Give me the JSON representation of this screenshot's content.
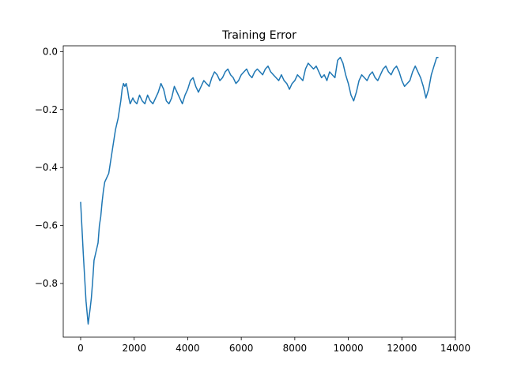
{
  "chart_data": {
    "type": "line",
    "title": "Training Error",
    "xlabel": "",
    "ylabel": "",
    "xlim": [
      -650,
      14000
    ],
    "ylim": [
      -0.985,
      0.02
    ],
    "x_ticks": [
      0,
      2000,
      4000,
      6000,
      8000,
      10000,
      12000,
      14000
    ],
    "x_tick_labels": [
      "0",
      "2000",
      "4000",
      "6000",
      "8000",
      "10000",
      "12000",
      "14000"
    ],
    "y_ticks": [
      0.0,
      -0.2,
      -0.4,
      -0.6,
      -0.8
    ],
    "y_tick_labels": [
      "0.0",
      "−0.2",
      "−0.4",
      "−0.6",
      "−0.8"
    ],
    "grid": false,
    "colors": {
      "line": "#1f77b4"
    },
    "series": [
      {
        "x": [
          0,
          100,
          200,
          280,
          350,
          400,
          450,
          500,
          550,
          600,
          650,
          700,
          750,
          800,
          850,
          900,
          950,
          1000,
          1050,
          1100,
          1150,
          1200,
          1250,
          1300,
          1350,
          1400,
          1450,
          1500,
          1550,
          1600,
          1650,
          1700,
          1750,
          1800,
          1850,
          1900,
          1950,
          2000,
          2100,
          2200,
          2300,
          2400,
          2500,
          2600,
          2700,
          2800,
          2900,
          3000,
          3100,
          3200,
          3300,
          3400,
          3500,
          3600,
          3700,
          3800,
          3900,
          4000,
          4100,
          4200,
          4300,
          4400,
          4500,
          4600,
          4700,
          4800,
          4900,
          5000,
          5100,
          5200,
          5300,
          5400,
          5500,
          5600,
          5700,
          5800,
          5900,
          6000,
          6100,
          6200,
          6300,
          6400,
          6500,
          6600,
          6700,
          6800,
          6900,
          7000,
          7100,
          7200,
          7300,
          7400,
          7500,
          7600,
          7700,
          7800,
          7900,
          8000,
          8100,
          8200,
          8300,
          8400,
          8500,
          8600,
          8700,
          8800,
          8900,
          9000,
          9100,
          9200,
          9300,
          9400,
          9500,
          9600,
          9700,
          9800,
          9900,
          10000,
          10100,
          10200,
          10300,
          10400,
          10500,
          10600,
          10700,
          10800,
          10900,
          11000,
          11100,
          11200,
          11300,
          11400,
          11500,
          11600,
          11700,
          11800,
          11900,
          12000,
          12100,
          12200,
          12300,
          12400,
          12500,
          12600,
          12700,
          12800,
          12900,
          13000,
          13100,
          13200,
          13300,
          13350
        ],
        "y": [
          -0.52,
          -0.7,
          -0.86,
          -0.94,
          -0.89,
          -0.85,
          -0.79,
          -0.72,
          -0.7,
          -0.68,
          -0.66,
          -0.6,
          -0.57,
          -0.52,
          -0.48,
          -0.45,
          -0.44,
          -0.43,
          -0.42,
          -0.39,
          -0.36,
          -0.33,
          -0.3,
          -0.27,
          -0.25,
          -0.23,
          -0.2,
          -0.17,
          -0.13,
          -0.11,
          -0.12,
          -0.11,
          -0.13,
          -0.16,
          -0.18,
          -0.17,
          -0.16,
          -0.17,
          -0.18,
          -0.15,
          -0.17,
          -0.18,
          -0.15,
          -0.17,
          -0.18,
          -0.16,
          -0.14,
          -0.11,
          -0.13,
          -0.17,
          -0.18,
          -0.16,
          -0.12,
          -0.14,
          -0.16,
          -0.18,
          -0.15,
          -0.13,
          -0.1,
          -0.09,
          -0.12,
          -0.14,
          -0.12,
          -0.1,
          -0.11,
          -0.12,
          -0.09,
          -0.07,
          -0.08,
          -0.1,
          -0.09,
          -0.07,
          -0.06,
          -0.08,
          -0.09,
          -0.11,
          -0.1,
          -0.08,
          -0.07,
          -0.06,
          -0.08,
          -0.09,
          -0.07,
          -0.06,
          -0.07,
          -0.08,
          -0.06,
          -0.05,
          -0.07,
          -0.08,
          -0.09,
          -0.1,
          -0.08,
          -0.1,
          -0.11,
          -0.13,
          -0.11,
          -0.1,
          -0.08,
          -0.09,
          -0.1,
          -0.06,
          -0.04,
          -0.05,
          -0.06,
          -0.05,
          -0.07,
          -0.09,
          -0.08,
          -0.1,
          -0.07,
          -0.08,
          -0.09,
          -0.03,
          -0.02,
          -0.04,
          -0.08,
          -0.11,
          -0.15,
          -0.17,
          -0.14,
          -0.1,
          -0.08,
          -0.09,
          -0.1,
          -0.08,
          -0.07,
          -0.09,
          -0.1,
          -0.08,
          -0.06,
          -0.05,
          -0.07,
          -0.08,
          -0.06,
          -0.05,
          -0.07,
          -0.1,
          -0.12,
          -0.11,
          -0.1,
          -0.07,
          -0.05,
          -0.07,
          -0.09,
          -0.12,
          -0.16,
          -0.13,
          -0.08,
          -0.05,
          -0.02,
          -0.02
        ]
      }
    ]
  }
}
